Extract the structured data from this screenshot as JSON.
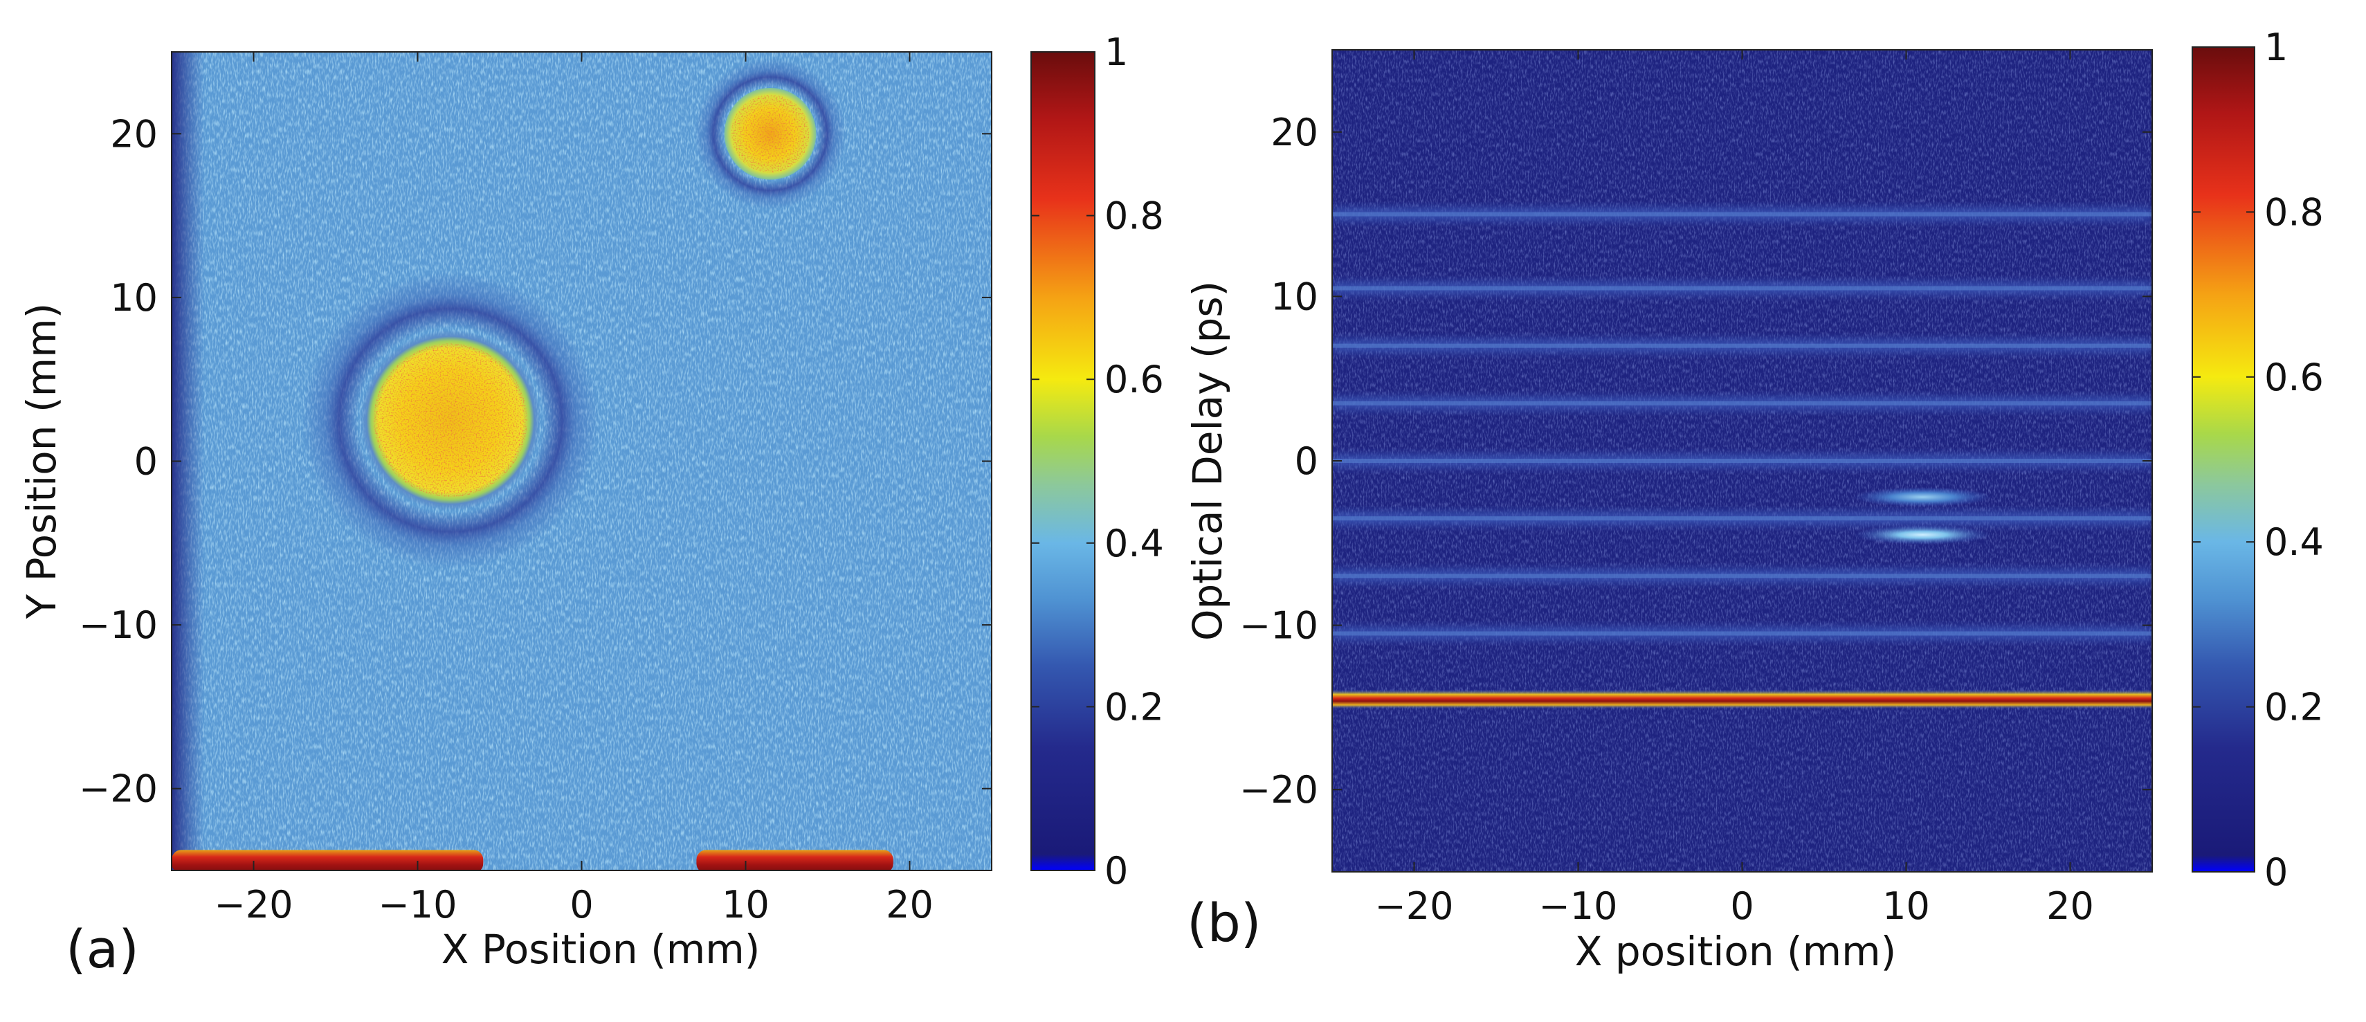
{
  "chart_data": [
    {
      "panel_label": "(a)",
      "type": "heatmap",
      "xlabel": "X Position (mm)",
      "ylabel": "Y Position (mm)",
      "xlim": [
        -25,
        25
      ],
      "ylim": [
        -25,
        25
      ],
      "x_ticks": [
        -20,
        -10,
        0,
        10,
        20
      ],
      "y_ticks": [
        -20,
        -10,
        0,
        10,
        20
      ],
      "x_tick_labels": [
        "−20",
        "−10",
        "0",
        "10",
        "20"
      ],
      "y_tick_labels": [
        "−20",
        "−10",
        "0",
        "10",
        "20"
      ],
      "colorbar": {
        "min": 0,
        "max": 1,
        "ticks": [
          0,
          0.2,
          0.4,
          0.6,
          0.8,
          1
        ],
        "tick_labels": [
          "0",
          "0.2",
          "0.4",
          "0.6",
          "0.8",
          "1"
        ],
        "colormap": "jet"
      },
      "background_level": 0.3,
      "features": [
        {
          "name": "large-disk",
          "kind": "disk",
          "cx": -8,
          "cy": 2.5,
          "r": 5.5,
          "level": 0.62,
          "halo_level": 0.15
        },
        {
          "name": "small-disk",
          "kind": "disk",
          "cx": 11.5,
          "cy": 20,
          "r": 2.8,
          "level": 0.6,
          "halo_level": 0.15
        },
        {
          "name": "left-edge-band",
          "kind": "rect",
          "x0": -25,
          "x1": -23,
          "y0": -25,
          "y1": 25,
          "level": 0.15
        },
        {
          "name": "bottom-bar-left",
          "kind": "rect",
          "x0": -25,
          "x1": -6,
          "y0": -25,
          "y1": -24,
          "level": 0.95
        },
        {
          "name": "bottom-bar-right",
          "kind": "rect",
          "x0": 7,
          "x1": 19,
          "y0": -25,
          "y1": -24,
          "level": 0.95
        }
      ]
    },
    {
      "panel_label": "(b)",
      "type": "heatmap",
      "xlabel": "X position (mm)",
      "ylabel": "Optical Delay (ps)",
      "xlim": [
        -25,
        25
      ],
      "ylim": [
        -25,
        25
      ],
      "x_ticks": [
        -20,
        -10,
        0,
        10,
        20
      ],
      "y_ticks": [
        -20,
        -10,
        0,
        10,
        20
      ],
      "x_tick_labels": [
        "−20",
        "−10",
        "0",
        "10",
        "20"
      ],
      "y_tick_labels": [
        "−20",
        "−10",
        "0",
        "10",
        "20"
      ],
      "colorbar": {
        "min": 0,
        "max": 1,
        "ticks": [
          0,
          0.2,
          0.4,
          0.6,
          0.8,
          1
        ],
        "tick_labels": [
          "0",
          "0.2",
          "0.4",
          "0.6",
          "0.8",
          "1"
        ],
        "colormap": "jet"
      },
      "background_level": 0.1,
      "stripes": [
        {
          "y": 15,
          "level": 0.2
        },
        {
          "y": 10.5,
          "level": 0.17
        },
        {
          "y": 7,
          "level": 0.19
        },
        {
          "y": 3.5,
          "level": 0.19
        },
        {
          "y": 0,
          "level": 0.18
        },
        {
          "y": -3.5,
          "level": 0.2
        },
        {
          "y": -7,
          "level": 0.19
        },
        {
          "y": -10.5,
          "level": 0.19
        },
        {
          "y": -14.5,
          "level": 0.95
        }
      ],
      "hotspots": [
        {
          "x": 11,
          "y": -4.5,
          "level": 0.4
        },
        {
          "x": 11,
          "y": -2.2,
          "level": 0.3
        }
      ]
    }
  ]
}
